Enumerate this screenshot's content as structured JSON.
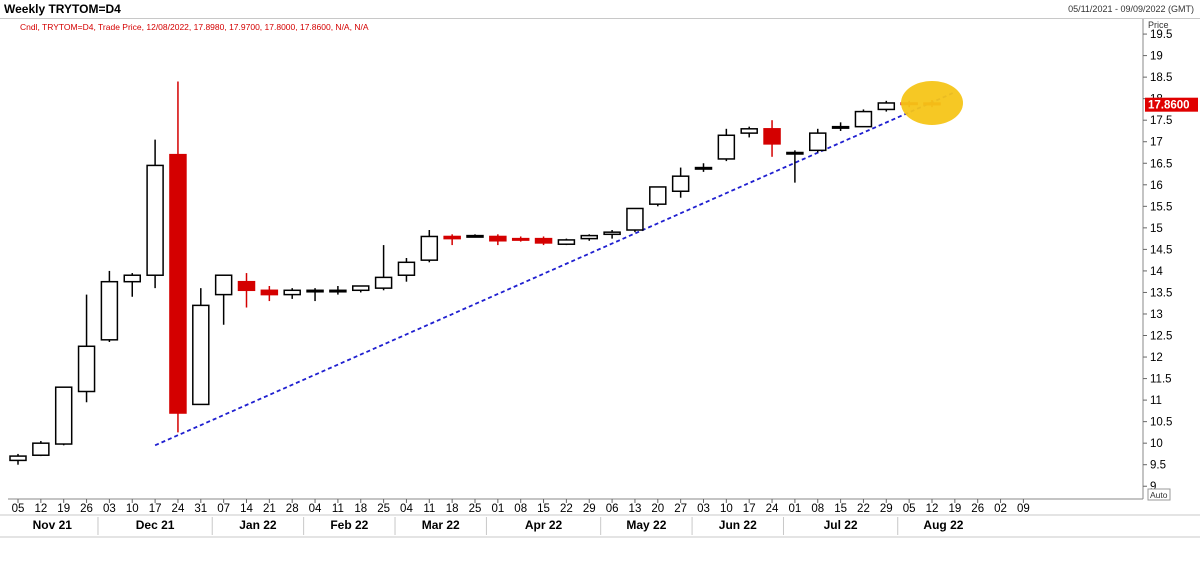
{
  "header": {
    "title": "Weekly TRYTOM=D4",
    "date_range": "05/11/2021 - 09/09/2022 (GMT)"
  },
  "legend_text": "Cndl, TRYTOM=D4, Trade Price, 12/08/2022, 17.8980, 17.9700, 17.8000, 17.8600, N/A, N/A",
  "price_axis_label": "Price",
  "auto_label": "Auto",
  "last_price_label": "17.8600",
  "colors": {
    "up_fill": "#ffffff",
    "down_fill": "#d40000",
    "outline": "#000000",
    "trendline": "#1f1fd0",
    "highlight": "#f5c518",
    "price_tag": "#e00000"
  },
  "chart_data": {
    "type": "candlestick",
    "title": "Weekly TRYTOM=D4",
    "ylabel": "Price",
    "ylim": [
      8.75,
      19.85
    ],
    "yticks": [
      9,
      9.5,
      10,
      10.5,
      11,
      11.5,
      12,
      12.5,
      13,
      13.5,
      14,
      14.5,
      15,
      15.5,
      16,
      16.5,
      17,
      17.5,
      18,
      18.5,
      19,
      19.5
    ],
    "ytick_labels": [
      "9",
      "9.5",
      "10",
      "10.5",
      "11",
      "11.5",
      "12",
      "12.5",
      "13",
      "13.5",
      "14",
      "14.5",
      "15",
      "15.5",
      "16",
      "16.5",
      "17",
      "17.5",
      "18",
      "18.5",
      "19",
      "19.5"
    ],
    "x_labels": [
      "05",
      "12",
      "19",
      "26",
      "03",
      "10",
      "17",
      "24",
      "31",
      "07",
      "14",
      "21",
      "28",
      "04",
      "11",
      "18",
      "25",
      "04",
      "11",
      "18",
      "25",
      "01",
      "08",
      "15",
      "22",
      "29",
      "06",
      "13",
      "20",
      "27",
      "03",
      "10",
      "17",
      "24",
      "01",
      "08",
      "15",
      "22",
      "29",
      "05",
      "12",
      "19",
      "26",
      "02",
      "09"
    ],
    "month_labels": [
      {
        "label": "Nov 21",
        "start": 0,
        "end": 3
      },
      {
        "label": "Dec 21",
        "start": 4,
        "end": 8
      },
      {
        "label": "Jan 22",
        "start": 9,
        "end": 12
      },
      {
        "label": "Feb 22",
        "start": 13,
        "end": 16
      },
      {
        "label": "Mar 22",
        "start": 17,
        "end": 20
      },
      {
        "label": "Apr 22",
        "start": 21,
        "end": 25
      },
      {
        "label": "May 22",
        "start": 26,
        "end": 29
      },
      {
        "label": "Jun 22",
        "start": 30,
        "end": 33
      },
      {
        "label": "Jul 22",
        "start": 34,
        "end": 38
      },
      {
        "label": "Aug 22",
        "start": 39,
        "end": 42
      }
    ],
    "candles": [
      {
        "o": 9.6,
        "h": 9.75,
        "l": 9.5,
        "c": 9.7
      },
      {
        "o": 9.72,
        "h": 10.05,
        "l": 9.7,
        "c": 10.0
      },
      {
        "o": 9.98,
        "h": 11.3,
        "l": 9.95,
        "c": 11.3
      },
      {
        "o": 11.2,
        "h": 13.45,
        "l": 10.95,
        "c": 12.25
      },
      {
        "o": 12.4,
        "h": 14.0,
        "l": 12.35,
        "c": 13.75
      },
      {
        "o": 13.75,
        "h": 13.95,
        "l": 13.4,
        "c": 13.9
      },
      {
        "o": 13.9,
        "h": 17.05,
        "l": 13.6,
        "c": 16.45
      },
      {
        "o": 16.7,
        "h": 18.4,
        "l": 10.25,
        "c": 10.7
      },
      {
        "o": 10.9,
        "h": 13.6,
        "l": 10.9,
        "c": 13.2
      },
      {
        "o": 13.45,
        "h": 13.9,
        "l": 12.75,
        "c": 13.9
      },
      {
        "o": 13.75,
        "h": 13.95,
        "l": 13.15,
        "c": 13.55
      },
      {
        "o": 13.55,
        "h": 13.65,
        "l": 13.3,
        "c": 13.45
      },
      {
        "o": 13.45,
        "h": 13.6,
        "l": 13.35,
        "c": 13.55
      },
      {
        "o": 13.55,
        "h": 13.6,
        "l": 13.3,
        "c": 13.55
      },
      {
        "o": 13.55,
        "h": 13.65,
        "l": 13.45,
        "c": 13.55
      },
      {
        "o": 13.55,
        "h": 13.65,
        "l": 13.5,
        "c": 13.65
      },
      {
        "o": 13.6,
        "h": 14.6,
        "l": 13.55,
        "c": 13.85
      },
      {
        "o": 13.9,
        "h": 14.3,
        "l": 13.75,
        "c": 14.2
      },
      {
        "o": 14.25,
        "h": 14.95,
        "l": 14.2,
        "c": 14.8
      },
      {
        "o": 14.8,
        "h": 14.85,
        "l": 14.6,
        "c": 14.75
      },
      {
        "o": 14.8,
        "h": 14.85,
        "l": 14.78,
        "c": 14.82
      },
      {
        "o": 14.8,
        "h": 14.85,
        "l": 14.6,
        "c": 14.7
      },
      {
        "o": 14.75,
        "h": 14.8,
        "l": 14.68,
        "c": 14.72
      },
      {
        "o": 14.75,
        "h": 14.8,
        "l": 14.6,
        "c": 14.65
      },
      {
        "o": 14.62,
        "h": 14.75,
        "l": 14.6,
        "c": 14.72
      },
      {
        "o": 14.75,
        "h": 14.85,
        "l": 14.7,
        "c": 14.82
      },
      {
        "o": 14.85,
        "h": 14.95,
        "l": 14.75,
        "c": 14.9
      },
      {
        "o": 14.95,
        "h": 15.45,
        "l": 14.9,
        "c": 15.45
      },
      {
        "o": 15.55,
        "h": 15.95,
        "l": 15.5,
        "c": 15.95
      },
      {
        "o": 15.85,
        "h": 16.4,
        "l": 15.7,
        "c": 16.2
      },
      {
        "o": 16.4,
        "h": 16.5,
        "l": 16.3,
        "c": 16.4
      },
      {
        "o": 16.6,
        "h": 17.3,
        "l": 16.55,
        "c": 17.15
      },
      {
        "o": 17.2,
        "h": 17.35,
        "l": 17.1,
        "c": 17.3
      },
      {
        "o": 17.3,
        "h": 17.5,
        "l": 16.65,
        "c": 16.95
      },
      {
        "o": 16.75,
        "h": 16.8,
        "l": 16.05,
        "c": 16.75
      },
      {
        "o": 16.8,
        "h": 17.3,
        "l": 16.75,
        "c": 17.2
      },
      {
        "o": 17.35,
        "h": 17.45,
        "l": 17.25,
        "c": 17.35
      },
      {
        "o": 17.35,
        "h": 17.75,
        "l": 17.35,
        "c": 17.7
      },
      {
        "o": 17.75,
        "h": 17.95,
        "l": 17.7,
        "c": 17.9
      },
      {
        "o": 17.9,
        "h": 17.95,
        "l": 17.8,
        "c": 17.88
      },
      {
        "o": 17.898,
        "h": 17.97,
        "l": 17.8,
        "c": 17.86
      }
    ],
    "trendline": [
      {
        "i": 6,
        "v": 9.95
      },
      {
        "i": 41.0,
        "v": 18.15
      }
    ],
    "highlight": {
      "i": 40.0,
      "v": 17.9
    }
  }
}
